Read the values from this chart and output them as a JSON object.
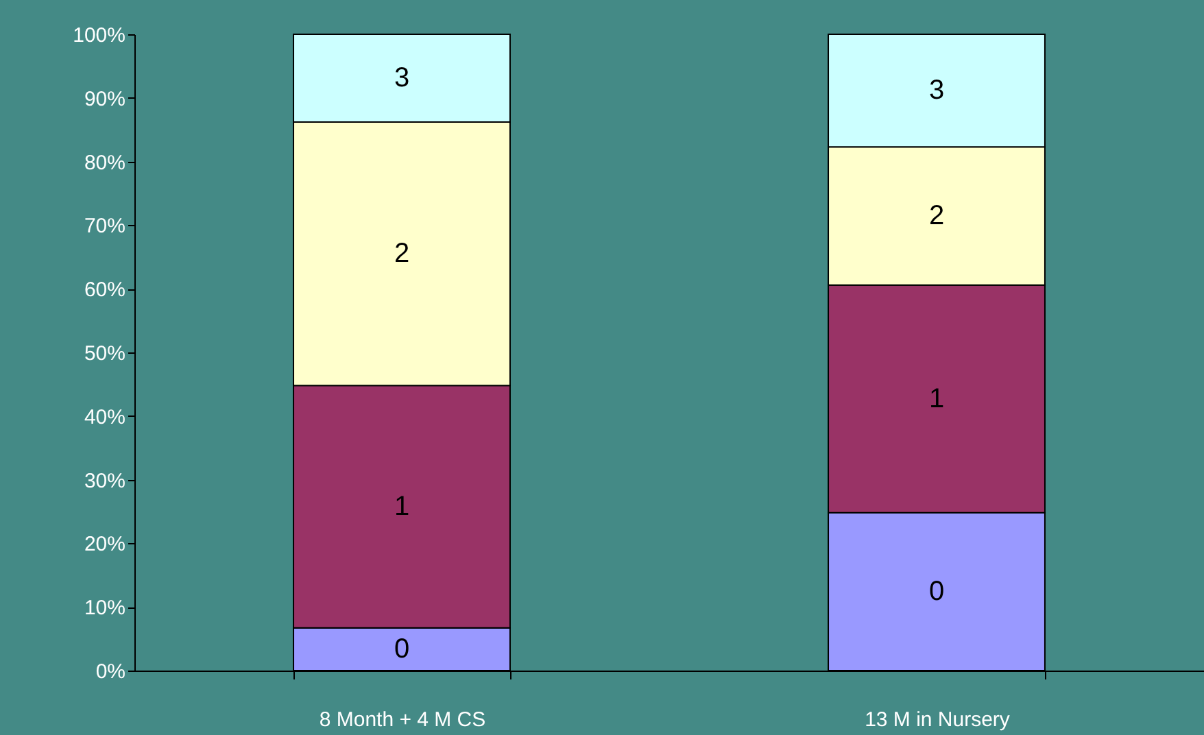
{
  "chart_data": {
    "type": "bar",
    "stacked": true,
    "categories": [
      "8 Month + 4 M CS",
      "13 M in Nursery"
    ],
    "series": [
      {
        "name": "0",
        "color": "#9999ff",
        "values": [
          6.7,
          24.8
        ]
      },
      {
        "name": "1",
        "color": "#993366",
        "values": [
          38.1,
          35.8
        ]
      },
      {
        "name": "2",
        "color": "#ffffcc",
        "values": [
          41.4,
          21.7
        ]
      },
      {
        "name": "3",
        "color": "#ccffff",
        "values": [
          13.8,
          17.7
        ]
      }
    ],
    "ylim": [
      0,
      100
    ],
    "yticks": [
      {
        "value": 0,
        "label": "0%"
      },
      {
        "value": 10,
        "label": "10%"
      },
      {
        "value": 20,
        "label": "20%"
      },
      {
        "value": 30,
        "label": "30%"
      },
      {
        "value": 40,
        "label": "40%"
      },
      {
        "value": 50,
        "label": "50%"
      },
      {
        "value": 60,
        "label": "60%"
      },
      {
        "value": 70,
        "label": "70%"
      },
      {
        "value": 80,
        "label": "80%"
      },
      {
        "value": 90,
        "label": "90%"
      },
      {
        "value": 100,
        "label": "100%"
      }
    ],
    "grid": false,
    "legend": false
  }
}
